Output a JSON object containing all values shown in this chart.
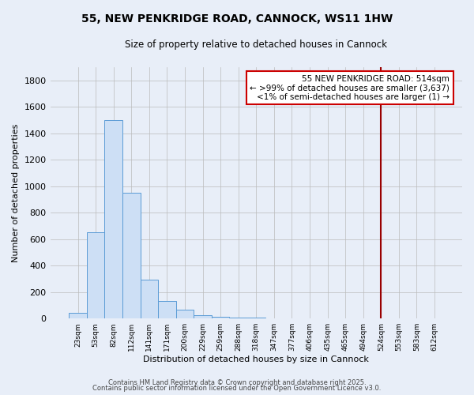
{
  "title": "55, NEW PENKRIDGE ROAD, CANNOCK, WS11 1HW",
  "subtitle": "Size of property relative to detached houses in Cannock",
  "xlabel": "Distribution of detached houses by size in Cannock",
  "ylabel": "Number of detached properties",
  "bar_color": "#cddff5",
  "bar_edge_color": "#5b9bd5",
  "background_color": "#e8eef8",
  "plot_bg_color": "#e8eef8",
  "grid_color": "#bbbbbb",
  "categories": [
    "23sqm",
    "53sqm",
    "82sqm",
    "112sqm",
    "141sqm",
    "171sqm",
    "200sqm",
    "229sqm",
    "259sqm",
    "288sqm",
    "318sqm",
    "347sqm",
    "377sqm",
    "406sqm",
    "435sqm",
    "465sqm",
    "494sqm",
    "524sqm",
    "553sqm",
    "583sqm",
    "612sqm"
  ],
  "values": [
    45,
    650,
    1500,
    950,
    295,
    135,
    68,
    25,
    15,
    8,
    5,
    3,
    2,
    2,
    2,
    1,
    0,
    0,
    0,
    0,
    0
  ],
  "vline_index": 17,
  "vline_color": "#990000",
  "annotation_text": "55 NEW PENKRIDGE ROAD: 514sqm\n← >99% of detached houses are smaller (3,637)\n<1% of semi-detached houses are larger (1) →",
  "annotation_box_color": "#ffffff",
  "annotation_border_color": "#cc0000",
  "ylim": [
    0,
    1900
  ],
  "yticks": [
    0,
    200,
    400,
    600,
    800,
    1000,
    1200,
    1400,
    1600,
    1800
  ],
  "footnote1": "Contains HM Land Registry data © Crown copyright and database right 2025.",
  "footnote2": "Contains public sector information licensed under the Open Government Licence v3.0."
}
